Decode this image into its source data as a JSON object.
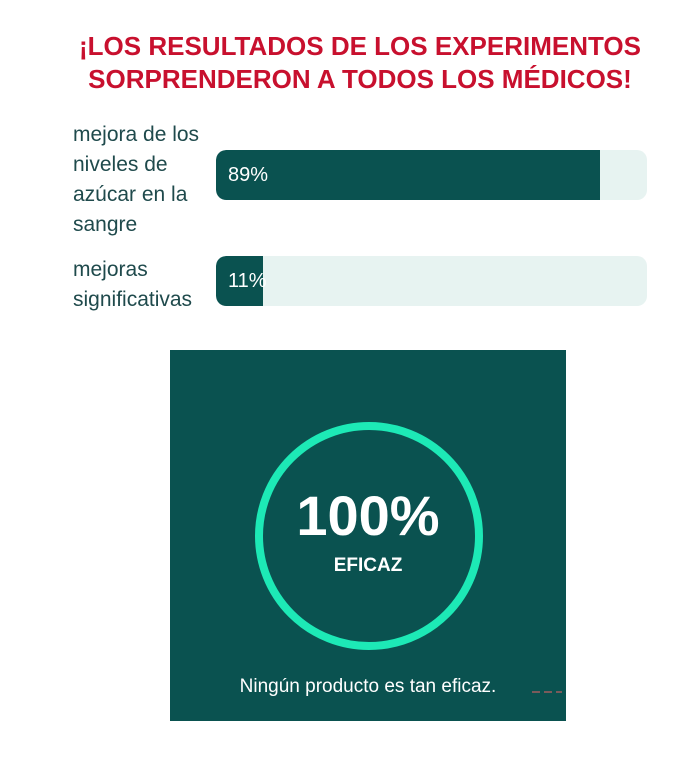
{
  "headline": {
    "line1": "¡LOS RESULTADOS DE LOS EXPERIMENTOS",
    "line2": "SORPRENDERON A TODOS LOS MÉDICOS!"
  },
  "stats": [
    {
      "label": "mejora de los niveles de azúcar en la sangre",
      "value_text": "89%",
      "value": 0.89
    },
    {
      "label": "mejoras significativas",
      "value_text": "11%",
      "value": 0.11
    }
  ],
  "promo": {
    "big_value": "100%",
    "big_label": "EFICAZ",
    "caption": "Ningún producto es tan eficaz."
  },
  "colors": {
    "headline": "#c8102e",
    "bar_fill": "#0a5250",
    "bar_track": "#e7f3f1",
    "ring": "#1de9b6",
    "promo_bg": "#0a5250"
  }
}
